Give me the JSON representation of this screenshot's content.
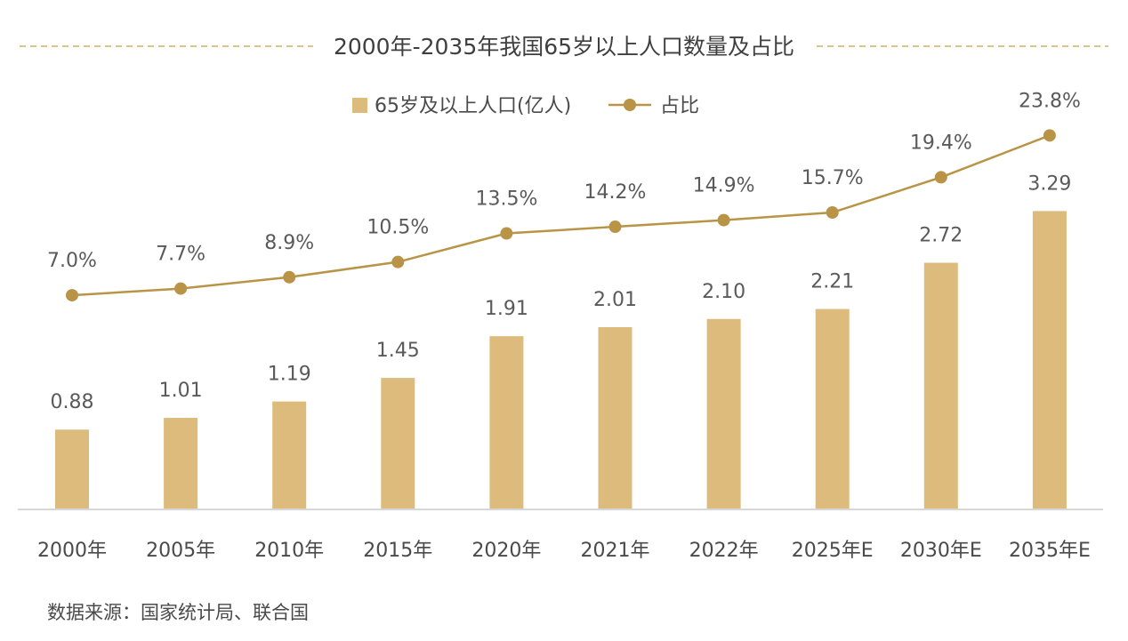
{
  "colors": {
    "bar": "#dcbb7c",
    "line": "#b99446",
    "title_rule": "#d9c48c",
    "axis": "#d7d7d7"
  },
  "source": "数据来源：国家统计局、联合国",
  "chart_data": {
    "type": "bar",
    "title": "2000年-2035年我国65岁以上人口数量及占比",
    "categories": [
      "2000年",
      "2005年",
      "2010年",
      "2015年",
      "2020年",
      "2021年",
      "2022年",
      "2025年E",
      "2030年E",
      "2035年E"
    ],
    "series": [
      {
        "name": "65岁及以上人口(亿人)",
        "type": "bar",
        "values": [
          0.88,
          1.01,
          1.19,
          1.45,
          1.91,
          2.01,
          2.1,
          2.21,
          2.72,
          3.29
        ],
        "labels": [
          "0.88",
          "1.01",
          "1.19",
          "1.45",
          "1.91",
          "2.01",
          "2.10",
          "2.21",
          "2.72",
          "3.29"
        ]
      },
      {
        "name": "占比",
        "type": "line",
        "values": [
          7.0,
          7.7,
          8.9,
          10.5,
          13.5,
          14.2,
          14.9,
          15.7,
          19.4,
          23.8
        ],
        "labels": [
          "7.0%",
          "7.7%",
          "8.9%",
          "10.5%",
          "13.5%",
          "14.2%",
          "14.9%",
          "15.7%",
          "19.4%",
          "23.8%"
        ]
      }
    ],
    "legend": "top-center",
    "grid": false
  }
}
